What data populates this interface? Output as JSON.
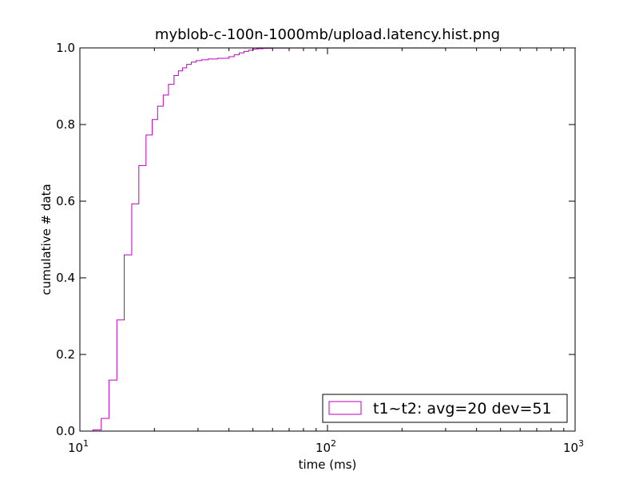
{
  "chart_data": {
    "type": "line",
    "title": "myblob-c-100n-1000mb/upload.latency.hist.png",
    "xlabel": "time (ms)",
    "ylabel": "cumulative # data",
    "xscale": "log",
    "xlim": [
      10,
      1000
    ],
    "ylim": [
      0.0,
      1.0
    ],
    "x_ticks": [
      {
        "value": 10,
        "base": "10",
        "exp": "1"
      },
      {
        "value": 100,
        "base": "10",
        "exp": "2"
      },
      {
        "value": 1000,
        "base": "10",
        "exp": "3"
      }
    ],
    "y_ticks": [
      "0.0",
      "0.2",
      "0.4",
      "0.6",
      "0.8",
      "1.0"
    ],
    "grid": false,
    "legend_position": "lower-right",
    "series": [
      {
        "name": "t1~t2: avg=20 dev=51",
        "color": "#bf00bf",
        "step": true,
        "x": [
          11.3,
          12.2,
          13.1,
          14.1,
          15.1,
          16.2,
          17.3,
          18.5,
          19.6,
          20.6,
          21.7,
          22.8,
          24.0,
          25.0,
          26.0,
          27.0,
          28.2,
          29.5,
          31.0,
          33.0,
          36.0,
          40.0,
          42.0,
          44.0,
          46.0,
          48.0,
          50.0,
          52.0,
          55.0,
          60.0,
          70.0,
          100.0,
          300.0,
          700.0,
          790.0,
          1050.0
        ],
        "y": [
          0.003,
          0.033,
          0.133,
          0.29,
          0.46,
          0.593,
          0.693,
          0.773,
          0.813,
          0.848,
          0.877,
          0.905,
          0.928,
          0.94,
          0.948,
          0.957,
          0.963,
          0.967,
          0.969,
          0.971,
          0.973,
          0.977,
          0.982,
          0.987,
          0.991,
          0.994,
          0.997,
          0.998,
          0.999,
          0.9995,
          0.9997,
          0.9998,
          0.9999,
          0.9999,
          1.0,
          1.0
        ]
      }
    ]
  }
}
